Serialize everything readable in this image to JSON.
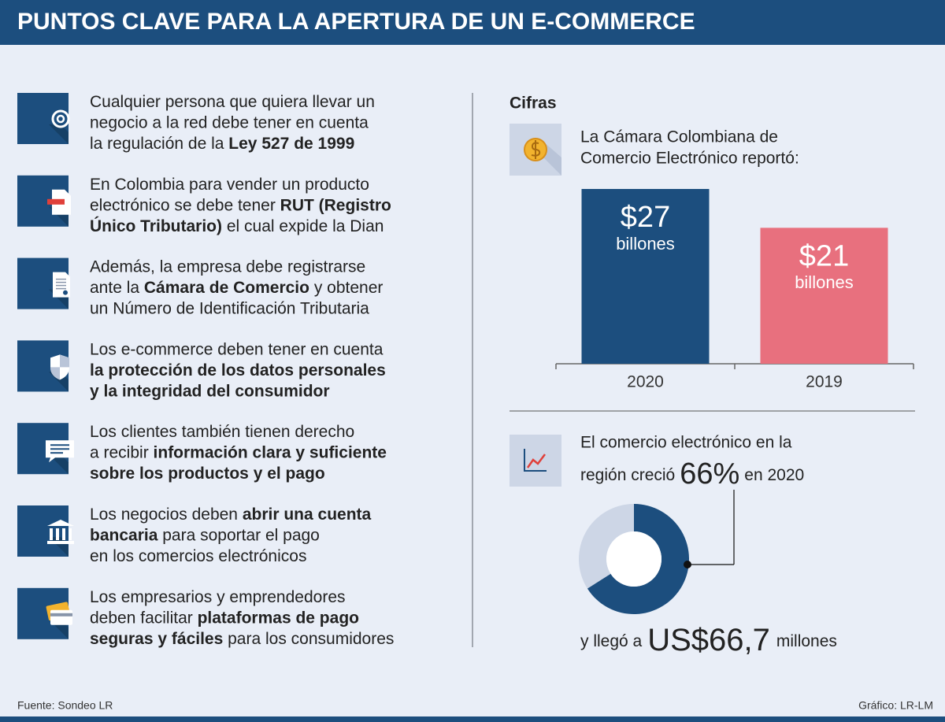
{
  "header": {
    "title": "PUNTOS CLAVE PARA LA APERTURA DE UN E-COMMERCE"
  },
  "items": [
    {
      "lines": [
        [
          {
            "text": "Cualquier persona que quiera llevar un",
            "bold": false
          }
        ],
        [
          {
            "text": "negocio a la red debe tener en cuenta",
            "bold": false
          }
        ],
        [
          {
            "text": "la regulación de la ",
            "bold": false
          },
          {
            "text": "Ley 527 de 1999",
            "bold": true
          }
        ]
      ]
    },
    {
      "lines": [
        [
          {
            "text": "En Colombia para vender un producto",
            "bold": false
          }
        ],
        [
          {
            "text": "electrónico se debe tener ",
            "bold": false
          },
          {
            "text": "RUT (Registro",
            "bold": true
          }
        ],
        [
          {
            "text": "Único Tributario)",
            "bold": true
          },
          {
            "text": " el cual expide la Dian",
            "bold": false
          }
        ]
      ]
    },
    {
      "lines": [
        [
          {
            "text": "Además, la empresa debe registrarse",
            "bold": false
          }
        ],
        [
          {
            "text": "ante la ",
            "bold": false
          },
          {
            "text": "Cámara de Comercio",
            "bold": true
          },
          {
            "text": " y obtener",
            "bold": false
          }
        ],
        [
          {
            "text": "un Número de Identificación Tributaria",
            "bold": false
          }
        ]
      ]
    },
    {
      "lines": [
        [
          {
            "text": "Los e-commerce deben tener en cuenta",
            "bold": false
          }
        ],
        [
          {
            "text": "la protección de los datos personales",
            "bold": true
          }
        ],
        [
          {
            "text": "y la integridad del consumidor",
            "bold": true
          }
        ]
      ]
    },
    {
      "lines": [
        [
          {
            "text": "Los clientes también tienen derecho",
            "bold": false
          }
        ],
        [
          {
            "text": "a recibir ",
            "bold": false
          },
          {
            "text": "información clara y suficiente",
            "bold": true
          }
        ],
        [
          {
            "text": "sobre los productos y el pago",
            "bold": true
          }
        ]
      ]
    },
    {
      "lines": [
        [
          {
            "text": "Los negocios deben ",
            "bold": false
          },
          {
            "text": "abrir una cuenta",
            "bold": true
          }
        ],
        [
          {
            "text": "bancaria",
            "bold": true
          },
          {
            "text": " para soportar el pago",
            "bold": false
          }
        ],
        [
          {
            "text": "en los comercios electrónicos",
            "bold": false
          }
        ]
      ]
    },
    {
      "lines": [
        [
          {
            "text": "Los empresarios y emprendedores",
            "bold": false
          }
        ],
        [
          {
            "text": "deben facilitar ",
            "bold": false
          },
          {
            "text": "plataformas de pago",
            "bold": true
          }
        ],
        [
          {
            "text": "seguras y fáciles",
            "bold": true
          },
          {
            "text": " para los consumidores",
            "bold": false
          }
        ]
      ]
    }
  ],
  "figures": {
    "title": "Cifras",
    "bar_intro": [
      "La Cámara Colombiana de",
      "Comercio Electrónico reportó:"
    ],
    "growth_text": [
      "El comercio electrónico en la",
      "región creció"
    ],
    "growth_suffix": "en 2020",
    "total_prefix": "y llegó a",
    "total_value": "US$66,7",
    "total_unit": "millones"
  },
  "chart_data": [
    {
      "type": "bar",
      "categories": [
        "2020",
        "2019"
      ],
      "values": [
        27,
        21
      ],
      "value_labels": [
        "$27",
        "$21"
      ],
      "unit_label": "billones",
      "colors": [
        "#1c4e7e",
        "#e8707e"
      ],
      "ylim": [
        0,
        27
      ]
    },
    {
      "type": "pie",
      "values": [
        66,
        34
      ],
      "value_labels": [
        "66%",
        null
      ],
      "colors": [
        "#1c4e7e",
        "#cdd6e6"
      ]
    }
  ],
  "footer": {
    "source": "Fuente: Sondeo LR",
    "credit": "Gráfico: LR-LM"
  }
}
